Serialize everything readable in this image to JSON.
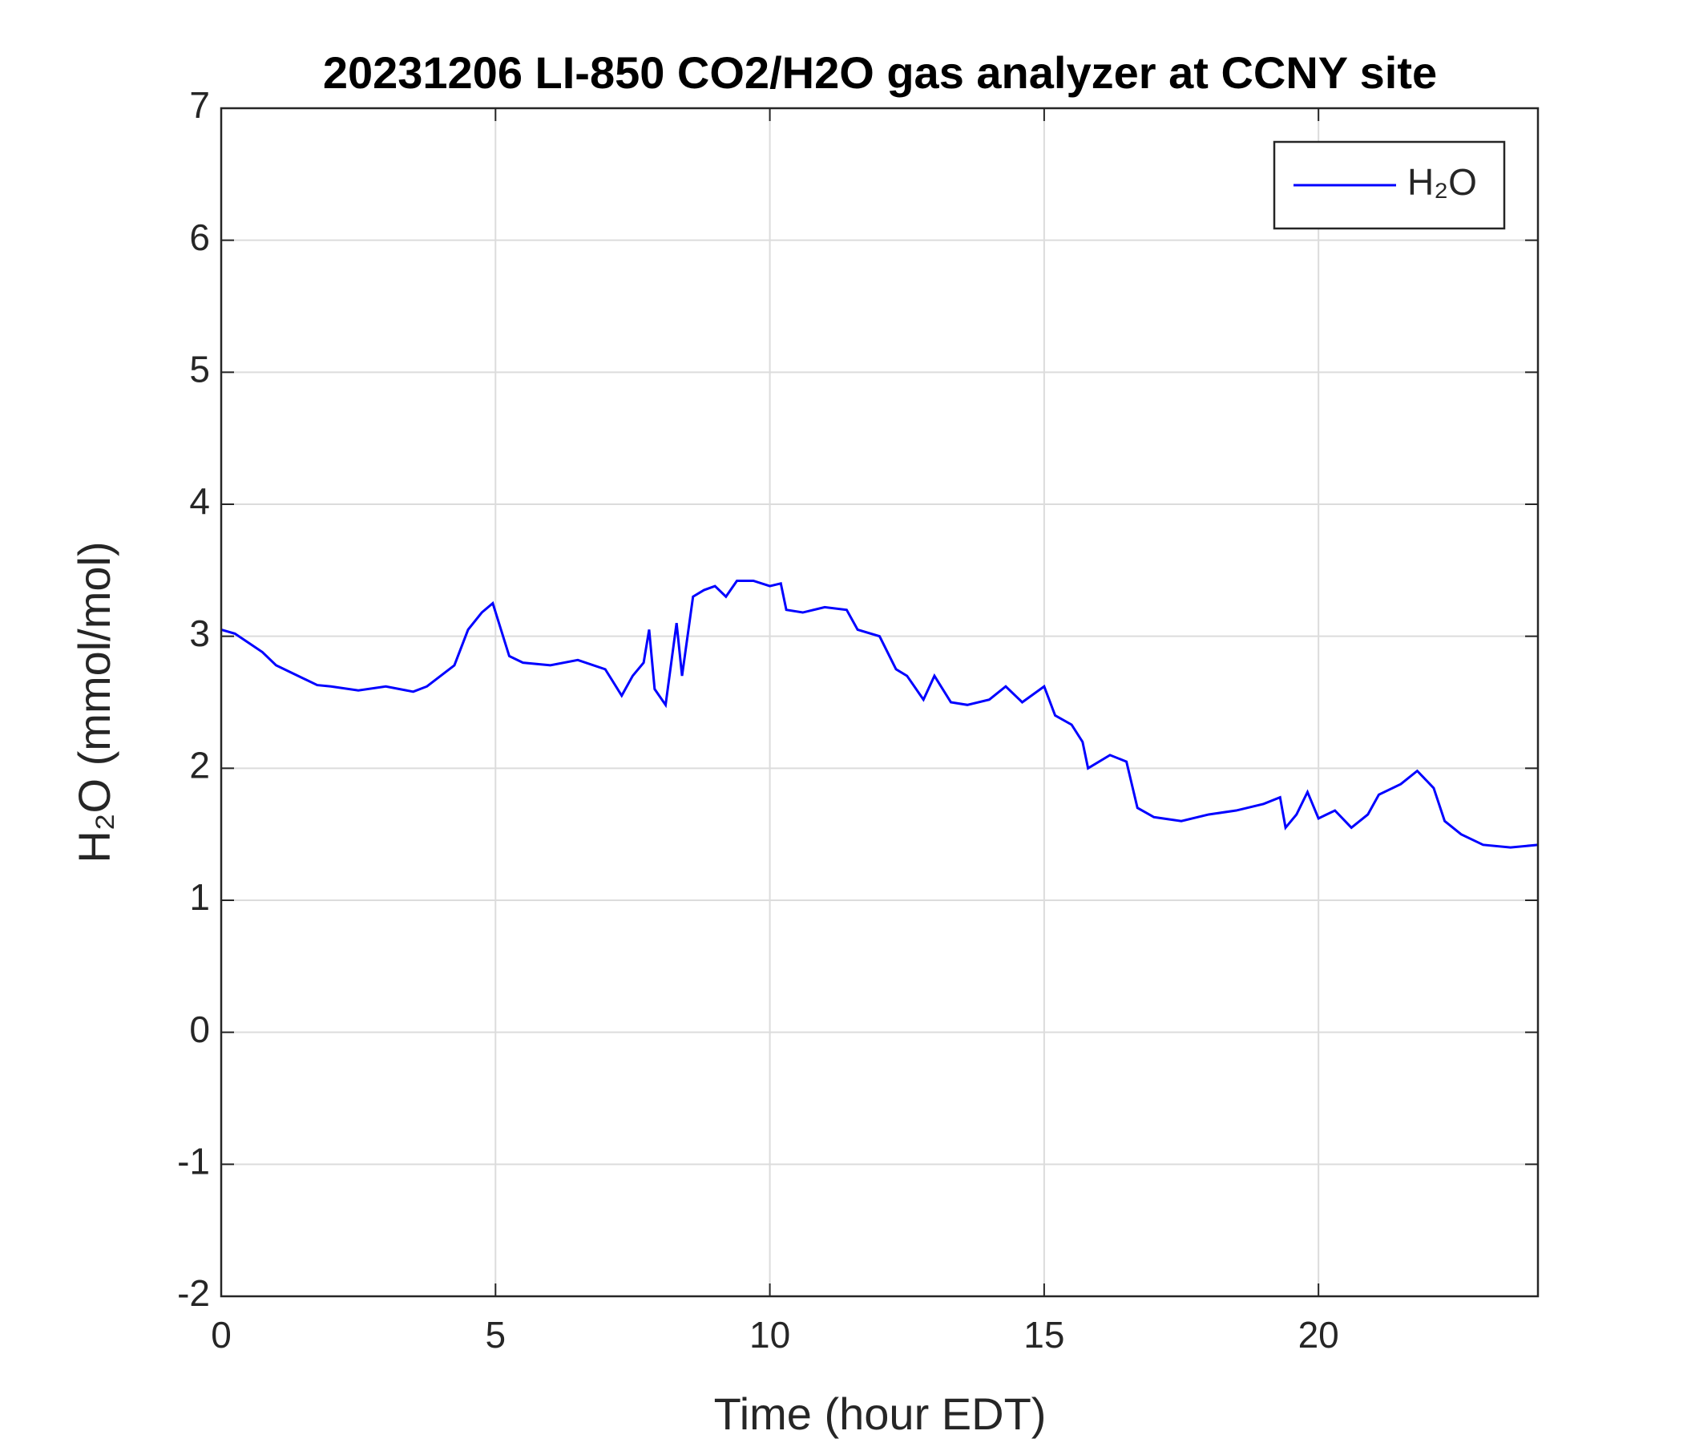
{
  "chart_data": {
    "type": "line",
    "title": "20231206 LI-850 CO2/H2O gas analyzer at CCNY site",
    "x_label": "Time (hour EDT)",
    "y_label": "H₂O (mmol/mol)",
    "x": [
      0,
      0.25,
      0.5,
      0.75,
      1,
      1.25,
      1.5,
      1.75,
      2,
      2.5,
      3,
      3.5,
      3.75,
      4,
      4.25,
      4.5,
      4.75,
      4.95,
      5.1,
      5.25,
      5.5,
      6,
      6.5,
      7,
      7.3,
      7.5,
      7.7,
      7.8,
      7.9,
      8.1,
      8.3,
      8.4,
      8.6,
      8.8,
      9,
      9.2,
      9.4,
      9.7,
      10,
      10.2,
      10.3,
      10.6,
      11,
      11.4,
      11.6,
      12,
      12.3,
      12.5,
      12.8,
      13,
      13.3,
      13.6,
      14,
      14.3,
      14.6,
      15,
      15.2,
      15.5,
      15.7,
      15.8,
      16.2,
      16.5,
      16.7,
      17,
      17.5,
      18,
      18.5,
      19,
      19.3,
      19.4,
      19.6,
      19.8,
      20,
      20.3,
      20.6,
      20.9,
      21.1,
      21.5,
      21.8,
      22.1,
      22.3,
      22.6,
      23,
      23.5,
      24
    ],
    "series": [
      {
        "name": "H₂O",
        "color": "#0000ff",
        "values": [
          3.05,
          3.02,
          2.95,
          2.88,
          2.78,
          2.73,
          2.68,
          2.63,
          2.62,
          2.59,
          2.62,
          2.58,
          2.62,
          2.7,
          2.78,
          3.05,
          3.18,
          3.25,
          3.05,
          2.85,
          2.8,
          2.78,
          2.82,
          2.75,
          2.55,
          2.7,
          2.8,
          3.05,
          2.6,
          2.48,
          3.1,
          2.7,
          3.3,
          3.35,
          3.38,
          3.3,
          3.42,
          3.42,
          3.38,
          3.4,
          3.2,
          3.18,
          3.22,
          3.2,
          3.05,
          3.0,
          2.75,
          2.7,
          2.52,
          2.7,
          2.5,
          2.48,
          2.52,
          2.62,
          2.5,
          2.62,
          2.4,
          2.33,
          2.2,
          2.0,
          2.1,
          2.05,
          1.7,
          1.63,
          1.6,
          1.65,
          1.68,
          1.73,
          1.78,
          1.55,
          1.65,
          1.82,
          1.62,
          1.68,
          1.55,
          1.65,
          1.8,
          1.88,
          1.98,
          1.85,
          1.6,
          1.5,
          1.42,
          1.4,
          1.42
        ]
      }
    ],
    "xlim": [
      0,
      24
    ],
    "xticks": [
      0,
      5,
      10,
      15,
      20
    ],
    "ylim": [
      -2,
      7
    ],
    "yticks": [
      -2,
      -1,
      0,
      1,
      2,
      3,
      4,
      5,
      6,
      7
    ],
    "grid": true,
    "legend": "upper right"
  }
}
